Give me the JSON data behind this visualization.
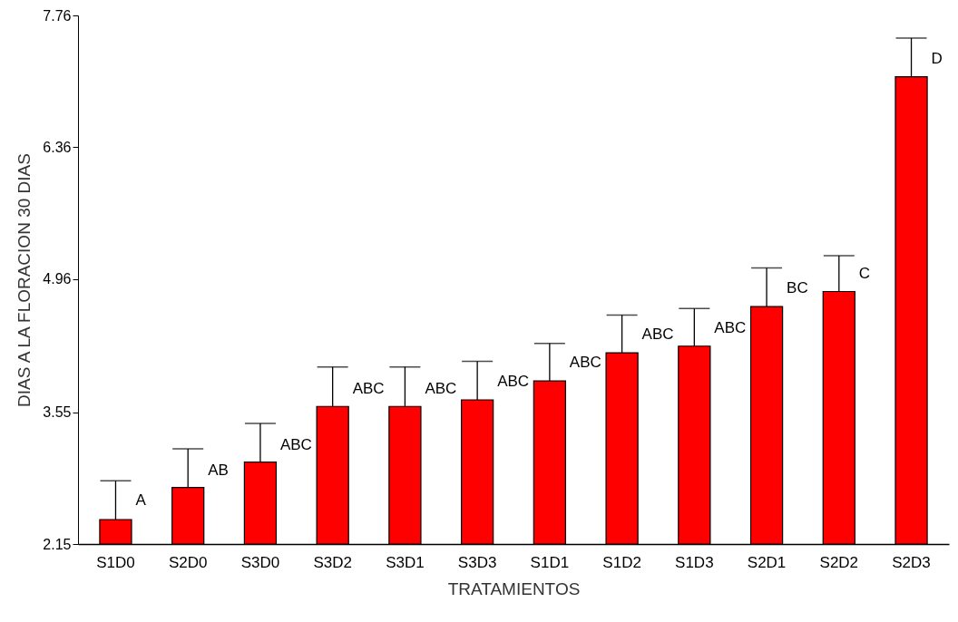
{
  "chart_data": {
    "type": "bar",
    "xlabel": "TRATAMIENTOS",
    "ylabel": "DIAS A LA FLORACION 30 DIAS",
    "categories": [
      "S1D0",
      "S2D0",
      "S3D0",
      "S3D2",
      "S3D1",
      "S3D3",
      "S1D1",
      "S1D2",
      "S1D3",
      "S2D1",
      "S2D2",
      "S2D3"
    ],
    "values": [
      2.41,
      2.75,
      3.02,
      3.61,
      3.61,
      3.68,
      3.88,
      4.18,
      4.25,
      4.67,
      4.83,
      7.11
    ],
    "errors": [
      [
        2.41,
        2.82
      ],
      [
        2.75,
        3.16
      ],
      [
        3.02,
        3.43
      ],
      [
        3.61,
        4.03
      ],
      [
        3.61,
        4.03
      ],
      [
        3.68,
        4.09
      ],
      [
        3.88,
        4.28
      ],
      [
        4.18,
        4.58
      ],
      [
        4.25,
        4.65
      ],
      [
        4.67,
        5.08
      ],
      [
        4.83,
        5.21
      ],
      [
        7.11,
        7.52
      ]
    ],
    "color": "#ff0000",
    "ylim": [
      2.15,
      7.76
    ],
    "yticks": [
      2.15,
      3.55,
      4.96,
      6.36,
      7.76
    ],
    "grid": false,
    "annotations": [
      {
        "text": "A",
        "x": "S1D0",
        "y": 2.61
      },
      {
        "text": "AB",
        "x": "S2D0",
        "y": 2.93
      },
      {
        "text": "ABC",
        "x": "S3D0",
        "y": 3.2
      },
      {
        "text": "ABC",
        "x": "S3D2",
        "y": 3.8
      },
      {
        "text": "ABC",
        "x": "S3D1",
        "y": 3.8
      },
      {
        "text": "ABC",
        "x": "S3D3",
        "y": 3.87
      },
      {
        "text": "ABC",
        "x": "S1D1",
        "y": 4.07
      },
      {
        "text": "ABC",
        "x": "S1D2",
        "y": 4.37
      },
      {
        "text": "ABC",
        "x": "S1D3",
        "y": 4.44
      },
      {
        "text": "BC",
        "x": "S2D1",
        "y": 4.86
      },
      {
        "text": "C",
        "x": "S2D2",
        "y": 5.02
      },
      {
        "text": "D",
        "x": "S2D3",
        "y": 7.3
      }
    ]
  }
}
